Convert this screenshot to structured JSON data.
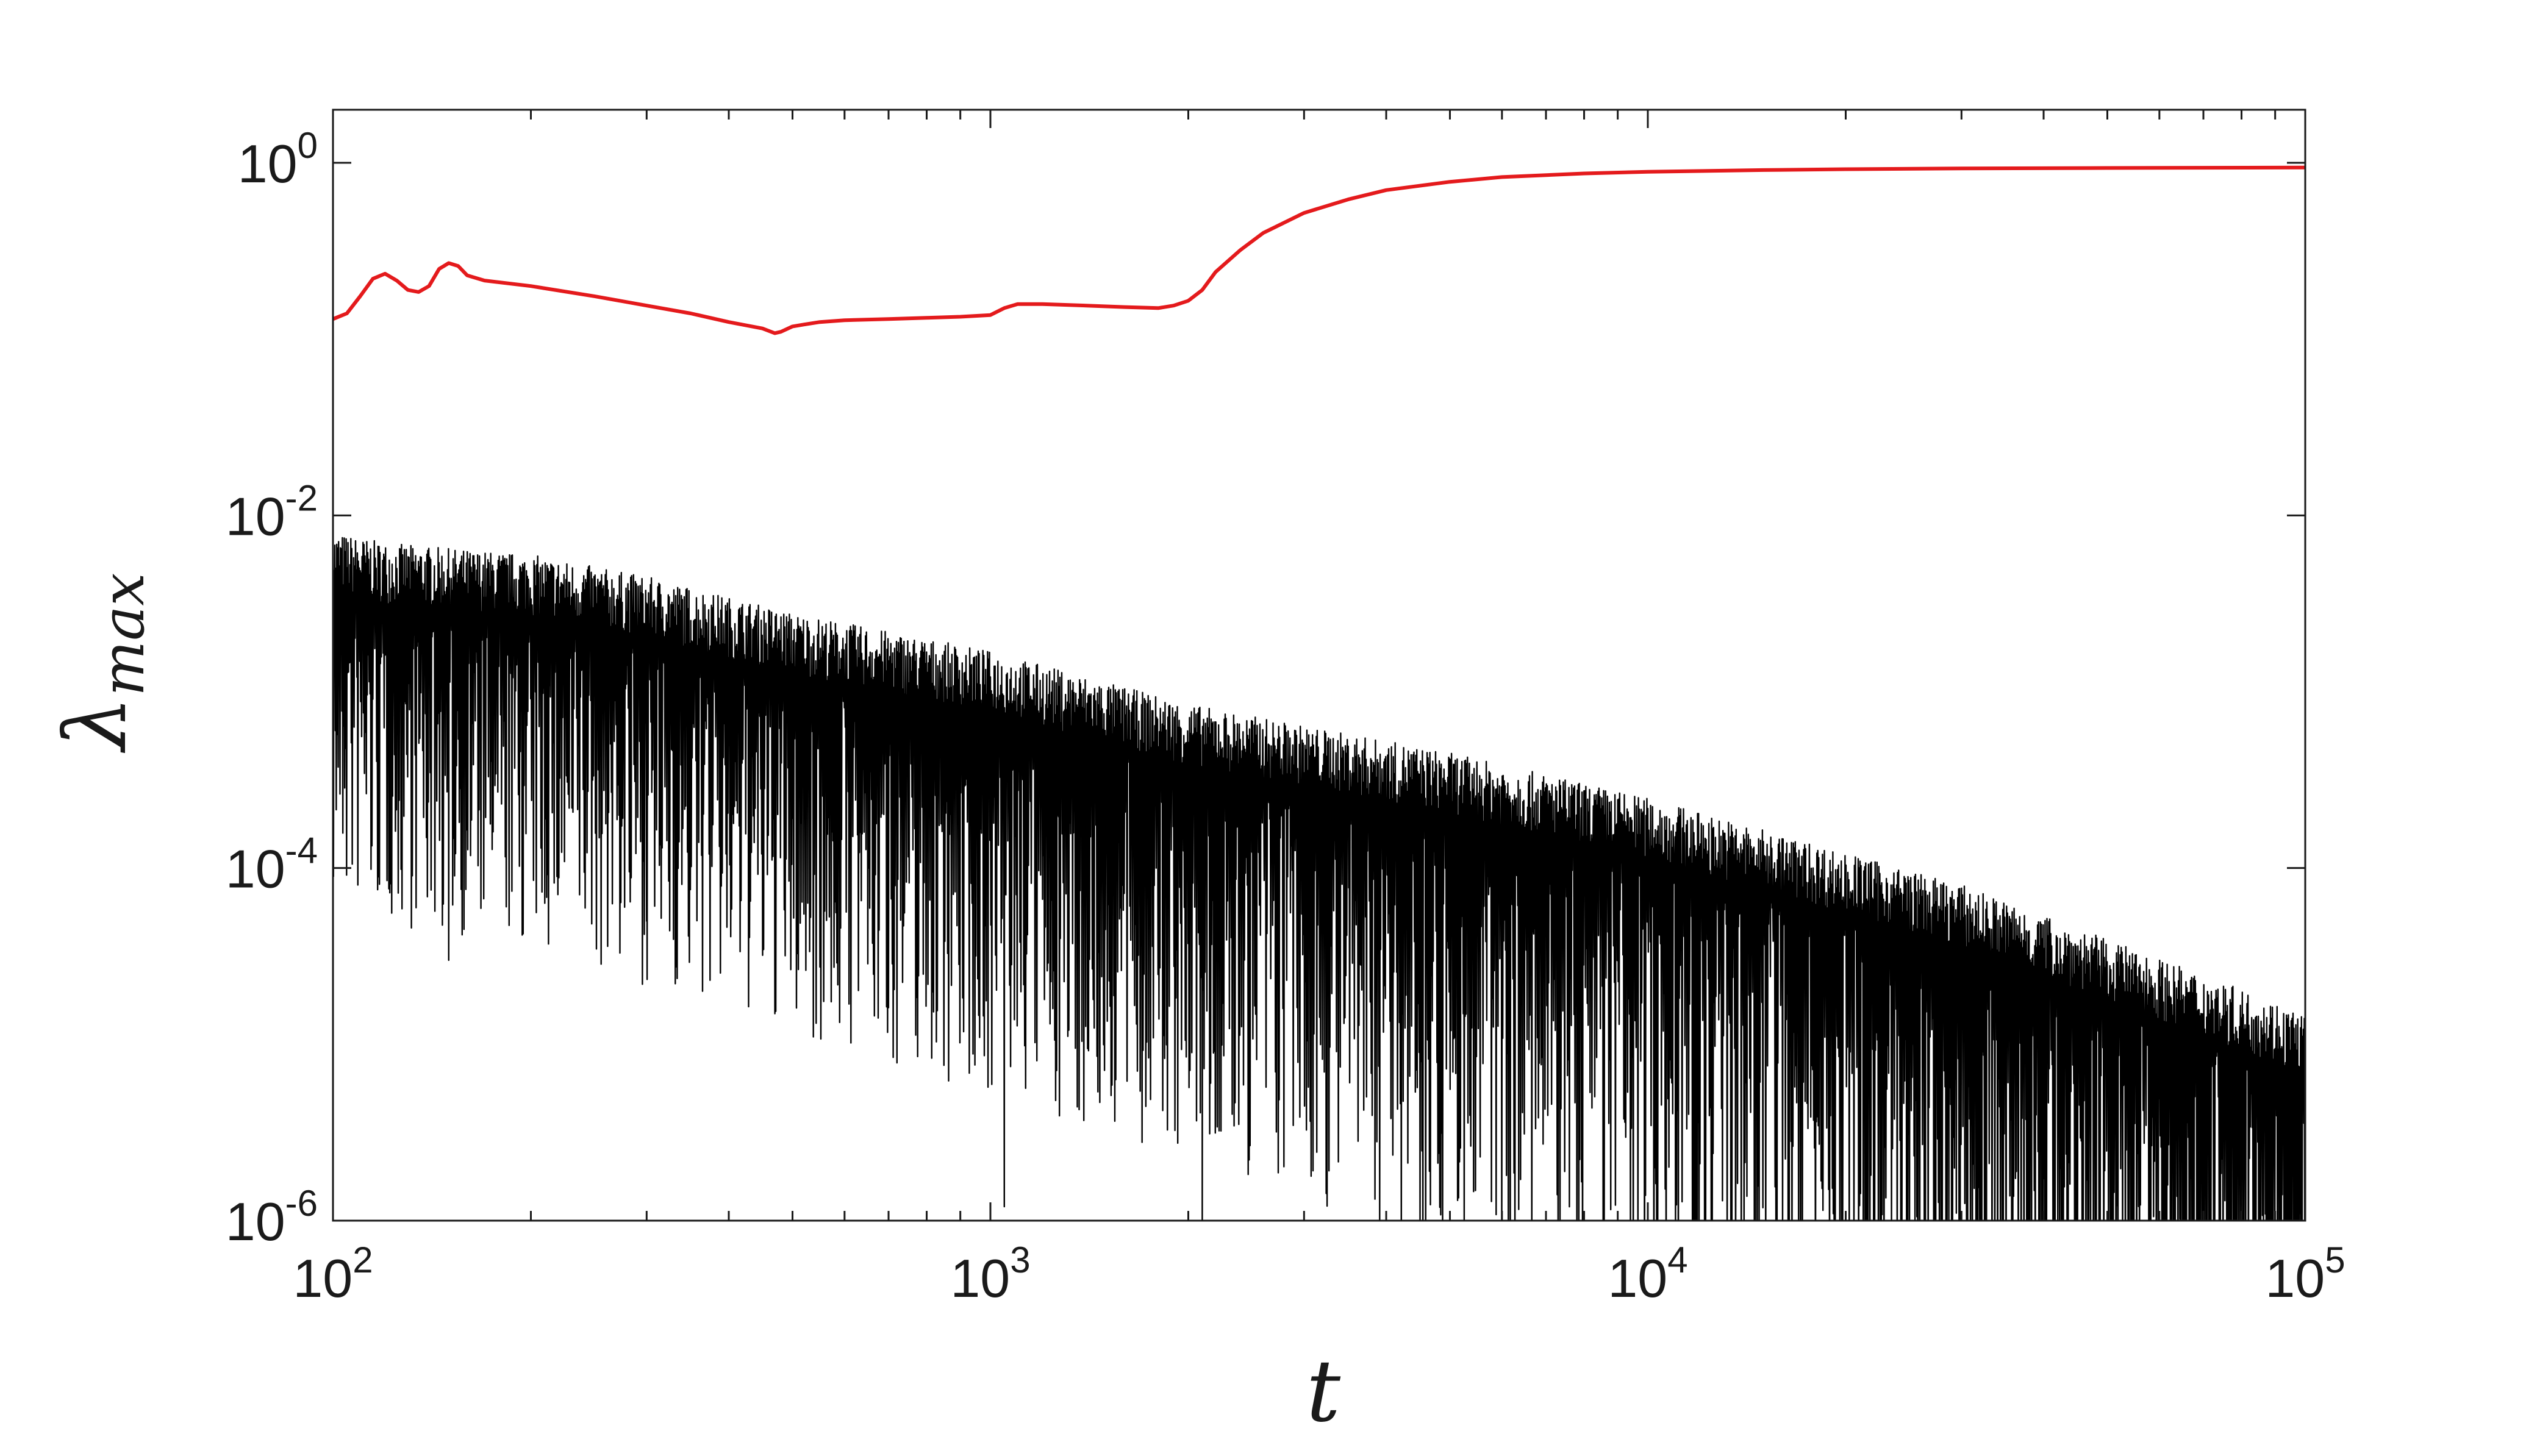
{
  "chart_data": {
    "type": "line",
    "title": "",
    "xlabel": "t",
    "ylabel": {
      "base": "λ",
      "subscript": "max"
    },
    "x_scale": "log",
    "y_scale": "log",
    "xlim": [
      100,
      100000
    ],
    "ylim": [
      1e-06,
      2
    ],
    "grid": false,
    "x_ticks": [
      {
        "value": 100,
        "base": "10",
        "exp": "2"
      },
      {
        "value": 1000,
        "base": "10",
        "exp": "3"
      },
      {
        "value": 10000,
        "base": "10",
        "exp": "4"
      },
      {
        "value": 100000,
        "base": "10",
        "exp": "5"
      }
    ],
    "y_ticks": [
      {
        "value": 1,
        "base": "10",
        "exp": "0"
      },
      {
        "value": 0.01,
        "base": "10",
        "exp": "-2"
      },
      {
        "value": 0.0001,
        "base": "10",
        "exp": "-4"
      },
      {
        "value": 1e-06,
        "base": "10",
        "exp": "-6"
      }
    ],
    "series": [
      {
        "color": "#e41a1c",
        "style": "smooth",
        "x": [
          100,
          105,
          110,
          115,
          120,
          125,
          130,
          135,
          140,
          145,
          150,
          155,
          160,
          170,
          200,
          250,
          300,
          350,
          400,
          450,
          470,
          480,
          500,
          520,
          550,
          600,
          700,
          800,
          900,
          1000,
          1050,
          1100,
          1200,
          1400,
          1600,
          1800,
          1900,
          2000,
          2100,
          2200,
          2400,
          2600,
          3000,
          3500,
          4000,
          5000,
          6000,
          8000,
          10000,
          15000,
          20000,
          30000,
          50000,
          100000
        ],
        "y": [
          0.13,
          0.14,
          0.175,
          0.22,
          0.235,
          0.215,
          0.19,
          0.185,
          0.2,
          0.25,
          0.27,
          0.26,
          0.23,
          0.215,
          0.2,
          0.175,
          0.155,
          0.14,
          0.125,
          0.115,
          0.108,
          0.11,
          0.118,
          0.121,
          0.125,
          0.128,
          0.13,
          0.132,
          0.134,
          0.137,
          0.15,
          0.158,
          0.158,
          0.155,
          0.152,
          0.15,
          0.155,
          0.165,
          0.19,
          0.24,
          0.32,
          0.4,
          0.52,
          0.62,
          0.7,
          0.78,
          0.83,
          0.87,
          0.89,
          0.91,
          0.92,
          0.93,
          0.935,
          0.94
        ]
      },
      {
        "color": "#000000",
        "style": "oscillating",
        "envelope_top": {
          "x": [
            100,
            120,
            150,
            200,
            300,
            500,
            1000,
            2000,
            5000,
            10000,
            30000,
            100000
          ],
          "y": [
            0.008,
            0.007,
            0.0065,
            0.006,
            0.0045,
            0.0028,
            0.0017,
            0.00085,
            0.00045,
            0.00025,
            8e-05,
            1.5e-05
          ]
        },
        "deep_minima": [
          {
            "x": 150,
            "y": 3e-05
          },
          {
            "x": 300,
            "y": 5e-05
          },
          {
            "x": 1050,
            "y": 1.2e-06
          },
          {
            "x": 2100,
            "y": 1e-06
          }
        ]
      }
    ]
  }
}
